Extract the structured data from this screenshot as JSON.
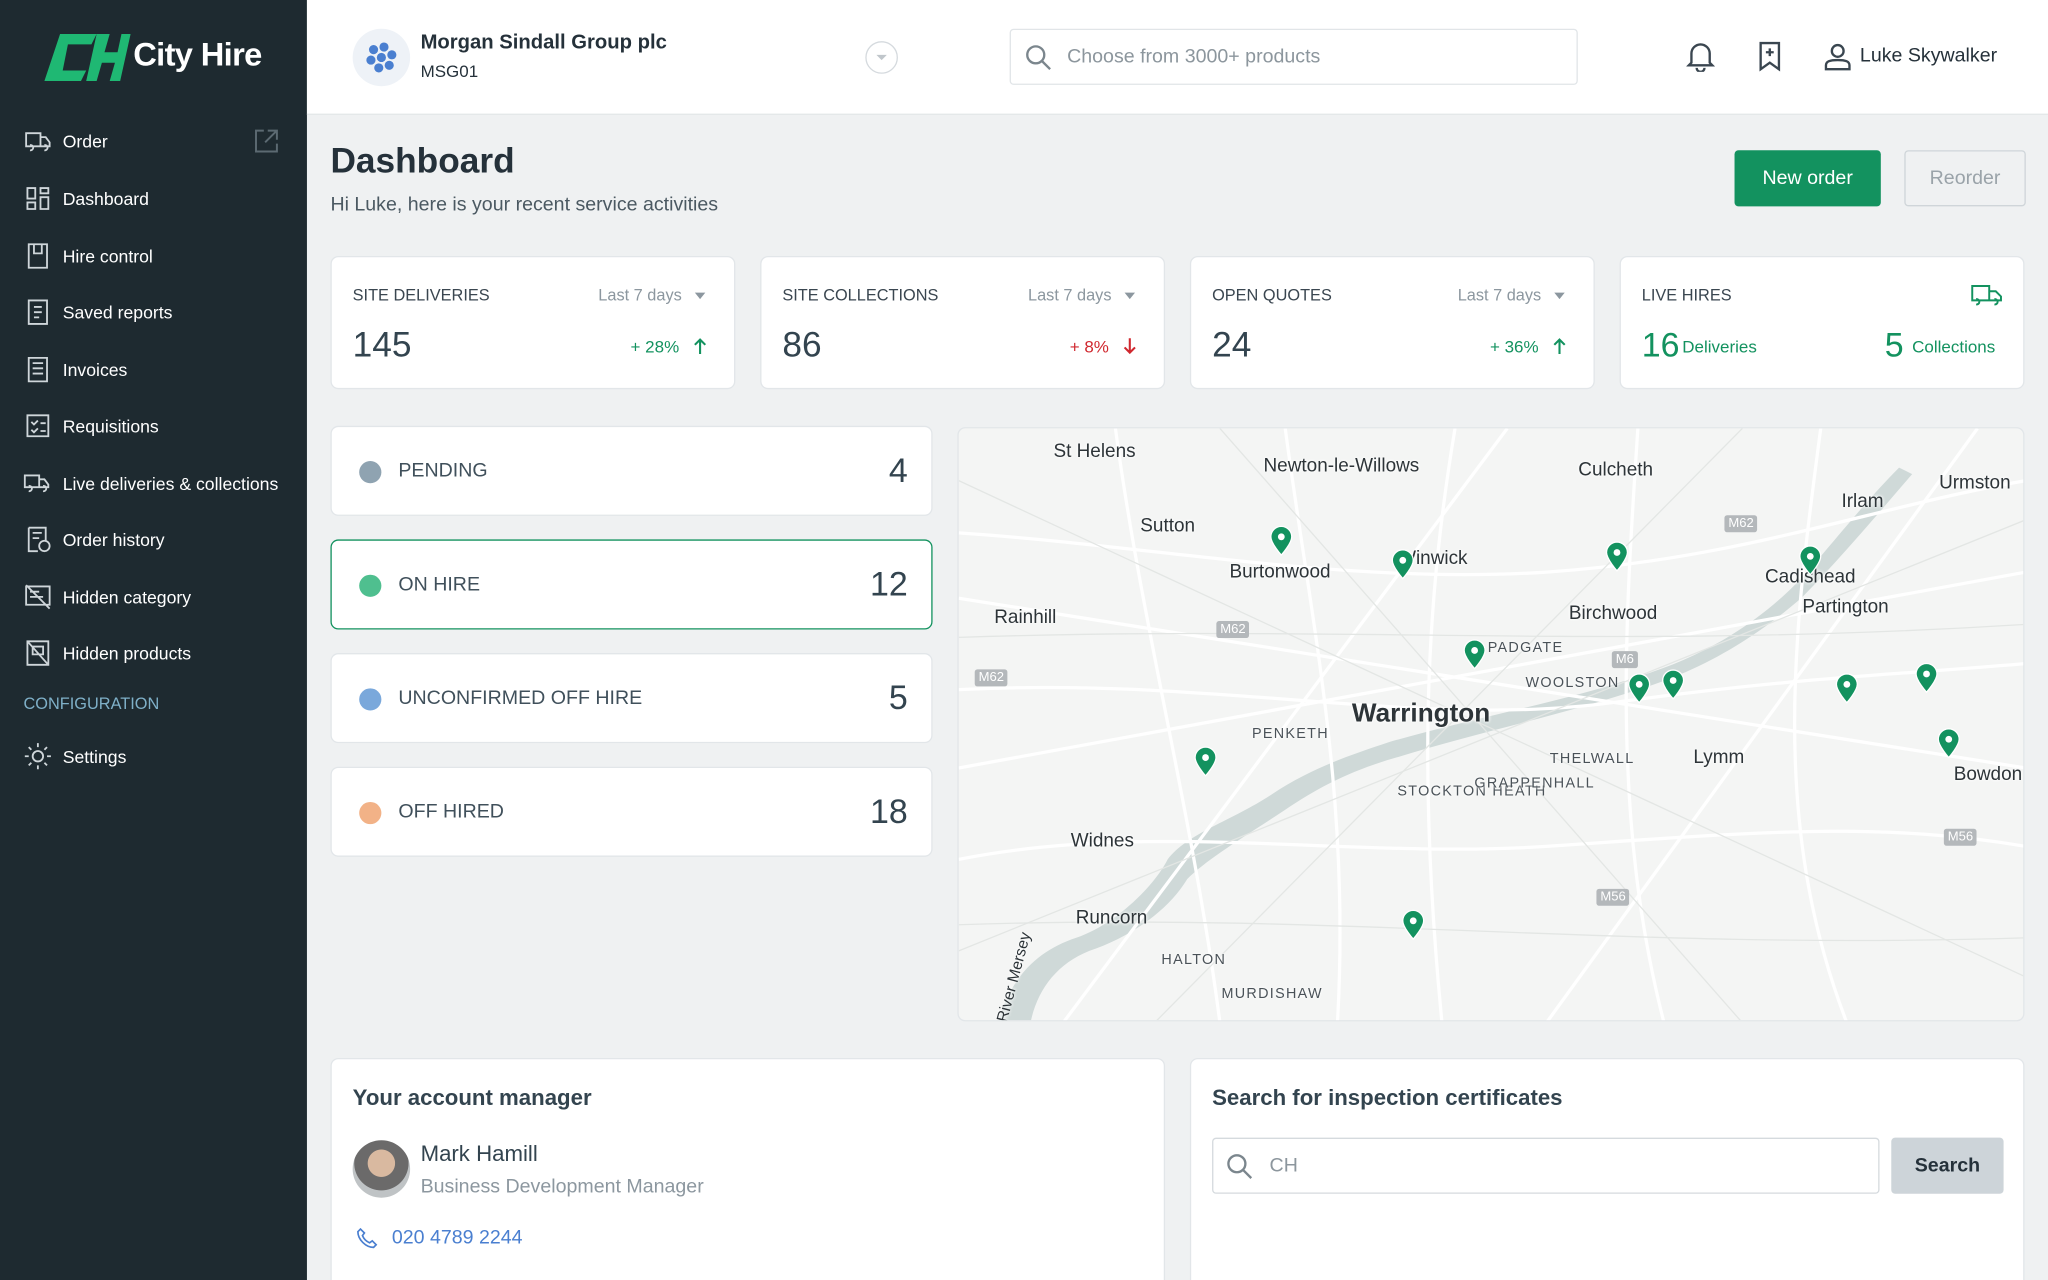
{
  "brand": "City Hire",
  "account": {
    "name": "Morgan Sindall Group plc",
    "code": "MSG01"
  },
  "search_placeholder": "Choose from 3000+ products",
  "user": "Luke Skywalker",
  "nav": [
    "Order",
    "Dashboard",
    "Hire control",
    "Saved reports",
    "Invoices",
    "Requisitions",
    "Live deliveries & collections",
    "Order history",
    "Hidden category",
    "Hidden products"
  ],
  "config_heading": "CONFIGURATION",
  "config_nav": [
    "Settings"
  ],
  "page": {
    "title": "Dashboard",
    "subtitle": "Hi Luke, here is your recent service activities",
    "actions": [
      "New order",
      "Reorder"
    ]
  },
  "stats": [
    {
      "label": "SITE DELIVERIES",
      "period": "Last 7 days",
      "value": 145,
      "change": "+ 28%",
      "trend": "up"
    },
    {
      "label": "SITE COLLECTIONS",
      "period": "Last 7 days",
      "value": 86,
      "change": "+ 8%",
      "trend": "down"
    },
    {
      "label": "OPEN QUOTES",
      "period": "Last 7 days",
      "value": 24,
      "change": "+ 36%",
      "trend": "up"
    }
  ],
  "live_hires": {
    "label": "LIVE HIRES",
    "deliveries": 16,
    "deliveries_label": "Deliveries",
    "collections": 5,
    "collections_label": "Collections"
  },
  "statuses": [
    {
      "label": "PENDING",
      "count": 4,
      "color": "#8fa3b1"
    },
    {
      "label": "ON HIRE",
      "count": 12,
      "color": "#4fbf8f"
    },
    {
      "label": "UNCONFIRMED OFF HIRE",
      "count": 5,
      "color": "#7aa8db"
    },
    {
      "label": "OFF HIRED",
      "count": 18,
      "color": "#f2b287"
    }
  ],
  "map_labels": [
    "St Helens",
    "Newton-le-Willows",
    "Culcheth",
    "Urmston",
    "Irlam",
    "Sutton",
    "Winwick",
    "Burtonwood",
    "Cadishead",
    "Rainhill",
    "Birchwood",
    "Partington",
    "PADGATE",
    "WOOLSTON",
    "Warrington",
    "PENKETH",
    "THELWALL",
    "Lymm",
    "STOCKTON HEATH",
    "GRAPPENHALL",
    "Widnes",
    "Runcorn",
    "HALTON",
    "MURDISHAW",
    "Bowdon",
    "River Mersey",
    "M62",
    "M62",
    "M62",
    "M6",
    "M56",
    "M56"
  ],
  "account_manager": {
    "heading": "Your account manager",
    "name": "Mark Hamill",
    "role": "Business Development Manager",
    "phone": "020 4789 2244"
  },
  "certificates": {
    "heading": "Search for inspection certificates",
    "placeholder": "CH",
    "button": "Search"
  }
}
